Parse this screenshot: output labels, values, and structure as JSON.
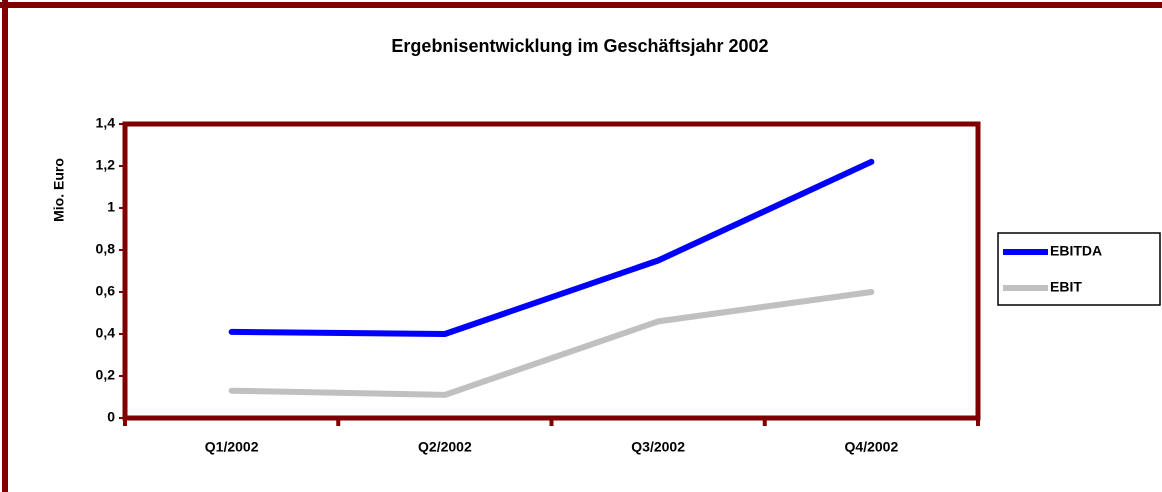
{
  "chart_data": {
    "type": "line",
    "title": "Ergebnisentwicklung im Geschäftsjahr 2002",
    "y_label": "Mio. Euro",
    "categories": [
      "Q1/2002",
      "Q2/2002",
      "Q3/2002",
      "Q4/2002"
    ],
    "series": [
      {
        "name": "EBITDA",
        "color": "#0000ff",
        "values": [
          0.41,
          0.4,
          0.75,
          1.22
        ]
      },
      {
        "name": "EBIT",
        "color": "#c0c0c0",
        "values": [
          0.13,
          0.11,
          0.46,
          0.6
        ]
      }
    ],
    "ylim": [
      0,
      1.4
    ],
    "yticks": [
      0,
      {
        "value": 0.2,
        "label": "0,2"
      },
      {
        "value": 0.4,
        "label": "0,4"
      },
      {
        "value": 0.6,
        "label": "0,6"
      },
      {
        "value": 0.8,
        "label": "0,8"
      },
      1,
      {
        "value": 1.2,
        "label": "1,2"
      },
      {
        "value": 1.4,
        "label": "1,4"
      }
    ],
    "grid": false,
    "legend": "right"
  }
}
